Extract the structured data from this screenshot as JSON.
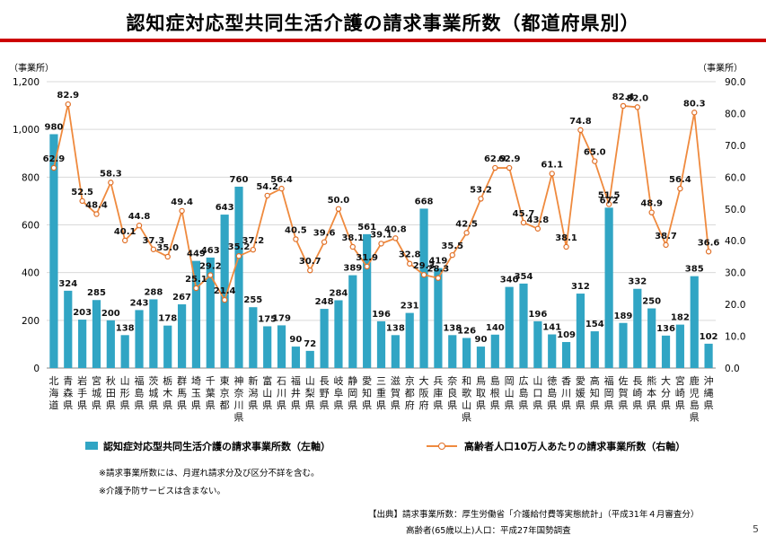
{
  "title": "認知症対応型共同生活介護の請求事業所数（都道府県別）",
  "page_number": "5",
  "notes": [
    "※請求事業所数には、月遅れ請求分及び区分不詳を含む。",
    "※介護予防サービスは含まない。"
  ],
  "source_lines": [
    "【出典】請求事業所数：厚生労働省「介護給付費等実態統計」（平成31年４月審査分）",
    "高齢者(65歳以上)人口：平成27年国勢調査"
  ],
  "colors": {
    "bar": "#31a5c4",
    "line": "#ef8a3e",
    "title_rule": "#cc0000"
  },
  "chart_data": {
    "type": "bar",
    "y_left_unit": "（事業所）",
    "y_right_unit": "（事業所）",
    "ylim_left": [
      0,
      1200
    ],
    "ylim_right": [
      0,
      90
    ],
    "yticks_left": [
      "0",
      "200",
      "400",
      "600",
      "800",
      "1,000",
      "1,200"
    ],
    "yticks_right": [
      "0.0",
      "10.0",
      "20.0",
      "30.0",
      "40.0",
      "50.0",
      "60.0",
      "70.0",
      "80.0",
      "90.0"
    ],
    "grid": true,
    "legend_position": "bottom",
    "categories": [
      "北海道",
      "青森県",
      "岩手県",
      "宮城県",
      "秋田県",
      "山形県",
      "福島県",
      "茨城県",
      "栃木県",
      "群馬県",
      "埼玉県",
      "千葉県",
      "東京都",
      "神奈川県",
      "新潟県",
      "富山県",
      "石川県",
      "福井県",
      "山梨県",
      "長野県",
      "岐阜県",
      "静岡県",
      "愛知県",
      "三重県",
      "滋賀県",
      "京都府",
      "大阪府",
      "兵庫県",
      "奈良県",
      "和歌山県",
      "鳥取県",
      "島根県",
      "岡山県",
      "広島県",
      "山口県",
      "徳島県",
      "香川県",
      "愛媛県",
      "高知県",
      "福岡県",
      "佐賀県",
      "長崎県",
      "熊本県",
      "大分県",
      "宮崎県",
      "鹿児島県",
      "沖縄県"
    ],
    "series": [
      {
        "name": "認知症対応型共同生活介護の請求事業所数（左軸）",
        "axis": "left",
        "values": [
          980,
          324,
          203,
          285,
          200,
          138,
          243,
          288,
          178,
          267,
          449,
          463,
          643,
          760,
          255,
          175,
          179,
          90,
          72,
          248,
          284,
          389,
          561,
          196,
          138,
          231,
          668,
          419,
          138,
          126,
          90,
          140,
          340,
          354,
          196,
          141,
          109,
          312,
          154,
          672,
          189,
          332,
          250,
          136,
          182,
          385,
          102
        ]
      },
      {
        "name": "高齢者人口10万人あたりの請求事業所数（右軸）",
        "axis": "right",
        "values": [
          "62.9",
          "82.9",
          "52.5",
          "48.4",
          "58.3",
          "40.1",
          "44.8",
          "37.3",
          "35.0",
          "49.4",
          "25.1",
          "29.2",
          "21.4",
          "35.2",
          "37.2",
          "54.2",
          "56.4",
          "40.5",
          "30.7",
          "39.6",
          "50.0",
          "38.1",
          "31.9",
          "39.1",
          "40.8",
          "32.8",
          "29.3",
          "28.3",
          "35.5",
          "42.5",
          "53.2",
          "62.9",
          "62.9",
          "45.7",
          "43.8",
          "61.1",
          "38.1",
          "74.8",
          "65.0",
          "51.5",
          "82.4",
          "82.0",
          "48.9",
          "38.7",
          "56.4",
          "80.3",
          "36.6"
        ]
      }
    ]
  }
}
